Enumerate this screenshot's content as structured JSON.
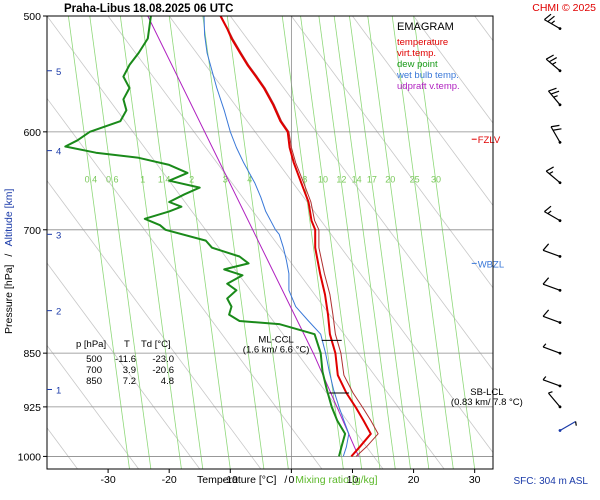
{
  "header": {
    "station": "Praha-Libus",
    "datetime": "18.08.2025 06 UTC",
    "credit": "CHMI © 2025"
  },
  "footer": {
    "sfc": "SFC: 304 m ASL"
  },
  "chart_data": {
    "type": "line",
    "title": "EMAGRAM",
    "xlabel_temperature": "Temperature [°C]",
    "xlabel_separator": "/",
    "xlabel_mixing": "Mixing ratio [g/kg]",
    "ylabel_pressure": "Pressure [hPa]",
    "ylabel_separator": "/",
    "ylabel_altitude": "Altitude [km]",
    "xlim": [
      -40,
      33
    ],
    "ylim": [
      1020,
      500
    ],
    "y_scale": "log",
    "grid": true,
    "legend_position": "top-right",
    "x_ticks": [
      -30,
      -20,
      -10,
      0,
      10,
      20,
      30
    ],
    "pressure_ticks": [
      500,
      600,
      700,
      850,
      925,
      1000
    ],
    "pressure_tick_labels": [
      "500",
      "600",
      "700",
      "850",
      "925",
      "1000"
    ],
    "altitude_ticks": [
      {
        "label": "1",
        "p": 900
      },
      {
        "label": "2",
        "p": 795
      },
      {
        "label": "3",
        "p": 705
      },
      {
        "label": "4",
        "p": 618
      },
      {
        "label": "5",
        "p": 545
      }
    ],
    "mixing_ratio_lines": [
      {
        "label": "0.4",
        "t": -31.5
      },
      {
        "label": "0.6",
        "t": -28.0
      },
      {
        "label": "1",
        "t": -23.0
      },
      {
        "label": "1.4",
        "t": -19.5
      },
      {
        "label": "2",
        "t": -15.0
      },
      {
        "label": "3",
        "t": -9.5
      },
      {
        "label": "4",
        "t": -5.5
      },
      {
        "label": "8",
        "t": 3.5
      },
      {
        "label": "10",
        "t": 6.5
      },
      {
        "label": "12",
        "t": 9.5
      },
      {
        "label": "14",
        "t": 12.0
      },
      {
        "label": "17",
        "t": 14.5
      },
      {
        "label": "20",
        "t": 17.5
      },
      {
        "label": "25",
        "t": 21.5
      },
      {
        "label": "30",
        "t": 25.0
      }
    ],
    "mixing_label_pressure": 650,
    "dry_adiabat_slope": 25,
    "dry_adiabat_offsets": [
      -80,
      -70,
      -60,
      -50,
      -40,
      -30,
      -20,
      -10,
      0,
      10,
      20,
      30,
      40,
      50,
      60,
      70
    ],
    "legend": [
      {
        "label": "temperature",
        "color": "#e00000"
      },
      {
        "label": "virt.temp.",
        "color": "#e00000"
      },
      {
        "label": "dew point",
        "color": "#1a9a1a"
      },
      {
        "label": "wet bulb temp.",
        "color": "#3a78d8"
      },
      {
        "label": "udpraft v.temp.",
        "color": "#b020c0"
      }
    ],
    "series": [
      {
        "name": "temperature",
        "color": "#e00000",
        "width": 2.0,
        "points": [
          [
            9.8,
            1000
          ],
          [
            11.2,
            985
          ],
          [
            13.0,
            965
          ],
          [
            11.8,
            945
          ],
          [
            10.5,
            925
          ],
          [
            9.0,
            905
          ],
          [
            7.6,
            880
          ],
          [
            7.2,
            850
          ],
          [
            6.3,
            825
          ],
          [
            6.0,
            800
          ],
          [
            5.5,
            775
          ],
          [
            4.7,
            750
          ],
          [
            3.9,
            720
          ],
          [
            3.9,
            700
          ],
          [
            3.3,
            690
          ],
          [
            2.8,
            670
          ],
          [
            1.6,
            650
          ],
          [
            0.4,
            630
          ],
          [
            -0.3,
            615
          ],
          [
            -0.6,
            600
          ],
          [
            -1.8,
            590
          ],
          [
            -3.0,
            575
          ],
          [
            -4.5,
            560
          ],
          [
            -5.8,
            550
          ],
          [
            -7.2,
            540
          ],
          [
            -8.4,
            530
          ],
          [
            -9.8,
            518
          ],
          [
            -10.5,
            510
          ],
          [
            -11.6,
            500
          ]
        ]
      },
      {
        "name": "virt.temp.",
        "color": "#b03030",
        "width": 1.0,
        "points": [
          [
            10.6,
            1000
          ],
          [
            12.3,
            985
          ],
          [
            14.2,
            965
          ],
          [
            13.0,
            945
          ],
          [
            11.6,
            925
          ],
          [
            10.1,
            905
          ],
          [
            8.6,
            880
          ],
          [
            8.1,
            850
          ],
          [
            7.2,
            825
          ],
          [
            6.8,
            800
          ],
          [
            6.3,
            775
          ],
          [
            5.4,
            750
          ],
          [
            4.5,
            720
          ],
          [
            4.5,
            700
          ],
          [
            3.8,
            690
          ],
          [
            3.2,
            670
          ],
          [
            2.0,
            650
          ],
          [
            0.7,
            630
          ],
          [
            0.0,
            615
          ],
          [
            -0.4,
            600
          ],
          [
            -1.6,
            590
          ],
          [
            -2.8,
            575
          ],
          [
            -4.3,
            560
          ],
          [
            -5.6,
            550
          ],
          [
            -7.0,
            540
          ],
          [
            -8.2,
            530
          ],
          [
            -9.6,
            518
          ],
          [
            -10.4,
            510
          ],
          [
            -11.5,
            500
          ]
        ]
      },
      {
        "name": "dew point",
        "color": "#1a8a1a",
        "width": 2.0,
        "points": [
          [
            7.8,
            1000
          ],
          [
            8.2,
            985
          ],
          [
            8.8,
            965
          ],
          [
            7.5,
            945
          ],
          [
            6.6,
            925
          ],
          [
            5.8,
            900
          ],
          [
            5.1,
            875
          ],
          [
            4.8,
            850
          ],
          [
            3.8,
            825
          ],
          [
            -2.0,
            812
          ],
          [
            -8.5,
            808
          ],
          [
            -10.2,
            800
          ],
          [
            -9.8,
            790
          ],
          [
            -10.5,
            780
          ],
          [
            -9.0,
            770
          ],
          [
            -10.5,
            762
          ],
          [
            -8.0,
            752
          ],
          [
            -11.0,
            745
          ],
          [
            -7.0,
            738
          ],
          [
            -8.5,
            730
          ],
          [
            -13.0,
            720
          ],
          [
            -14.0,
            712
          ],
          [
            -20.6,
            700
          ],
          [
            -21.5,
            695
          ],
          [
            -24.0,
            688
          ],
          [
            -20.0,
            680
          ],
          [
            -18.0,
            675
          ],
          [
            -20.0,
            670
          ],
          [
            -17.5,
            662
          ],
          [
            -15.0,
            655
          ],
          [
            -20.0,
            648
          ],
          [
            -17.0,
            640
          ],
          [
            -20.0,
            632
          ],
          [
            -25.0,
            625
          ],
          [
            -32.0,
            620
          ],
          [
            -37.0,
            614
          ],
          [
            -35.0,
            608
          ],
          [
            -33.0,
            600
          ],
          [
            -28.0,
            590
          ],
          [
            -27.0,
            580
          ],
          [
            -27.5,
            570
          ],
          [
            -26.5,
            560
          ],
          [
            -27.5,
            550
          ],
          [
            -26.5,
            540
          ],
          [
            -25.0,
            530
          ],
          [
            -23.5,
            518
          ],
          [
            -23.0,
            500
          ]
        ]
      },
      {
        "name": "wet bulb temp.",
        "color": "#3a78d8",
        "width": 1.0,
        "points": [
          [
            8.5,
            1000
          ],
          [
            9.0,
            985
          ],
          [
            9.4,
            965
          ],
          [
            8.6,
            945
          ],
          [
            7.8,
            925
          ],
          [
            6.9,
            900
          ],
          [
            6.2,
            875
          ],
          [
            5.6,
            850
          ],
          [
            4.8,
            825
          ],
          [
            2.8,
            808
          ],
          [
            0.7,
            790
          ],
          [
            -0.4,
            770
          ],
          [
            -0.4,
            750
          ],
          [
            -0.8,
            735
          ],
          [
            -1.3,
            720
          ],
          [
            -2.0,
            705
          ],
          [
            -2.6,
            700
          ],
          [
            -4.2,
            680
          ],
          [
            -5.0,
            665
          ],
          [
            -6.0,
            650
          ],
          [
            -7.8,
            630
          ],
          [
            -9.0,
            615
          ],
          [
            -10.0,
            600
          ],
          [
            -11.0,
            580
          ],
          [
            -12.2,
            560
          ],
          [
            -13.0,
            545
          ],
          [
            -13.8,
            530
          ],
          [
            -14.2,
            515
          ],
          [
            -14.3,
            500
          ]
        ]
      },
      {
        "name": "udpraft v.temp.",
        "color": "#b020c0",
        "width": 1.0,
        "points": [
          [
            11.0,
            1000
          ],
          [
            3.7,
            852
          ],
          [
            -23.5,
            500
          ]
        ]
      }
    ],
    "annotations": [
      {
        "kind": "level",
        "label": "FZLV",
        "p": 607,
        "color": "#e00000",
        "label_t": 30.5
      },
      {
        "kind": "level",
        "label": "WBZL",
        "p": 738,
        "color": "#3a78d8",
        "label_t": 30.5
      },
      {
        "kind": "ccl",
        "label": "ML-CCL",
        "sub": "(1.6 km/ 6.6 °C)",
        "t": 6.6,
        "p": 833,
        "label_t": -2.5
      },
      {
        "kind": "ccl",
        "label": "SB-LCL",
        "sub": "(0.83 km/ 7.8 °C)",
        "t": 7.8,
        "p": 905,
        "label_t": 32.0
      }
    ],
    "table": {
      "headers": [
        "p [hPa]",
        "T",
        "Td [°C]"
      ],
      "rows": [
        [
          "500",
          "-11.6",
          "-23.0"
        ],
        [
          "700",
          "3.9",
          "-20.6"
        ],
        [
          "850",
          "7.2",
          "4.8"
        ]
      ]
    },
    "wind_barbs": [
      {
        "p": 510,
        "dir": 300,
        "speed": 25
      },
      {
        "p": 545,
        "dir": 310,
        "speed": 25
      },
      {
        "p": 575,
        "dir": 320,
        "speed": 25
      },
      {
        "p": 610,
        "dir": 330,
        "speed": 20
      },
      {
        "p": 650,
        "dir": 310,
        "speed": 15
      },
      {
        "p": 690,
        "dir": 300,
        "speed": 15
      },
      {
        "p": 730,
        "dir": 290,
        "speed": 10
      },
      {
        "p": 770,
        "dir": 290,
        "speed": 10
      },
      {
        "p": 810,
        "dir": 290,
        "speed": 10
      },
      {
        "p": 850,
        "dir": 290,
        "speed": 5
      },
      {
        "p": 895,
        "dir": 290,
        "speed": 5
      },
      {
        "p": 925,
        "dir": 320,
        "speed": 5
      },
      {
        "p": 960,
        "dir": 60,
        "speed": 5
      }
    ],
    "colors": {
      "frame": "#000000",
      "grid": "#8a8a8a",
      "adiabat": "#c8c8c8",
      "mixing": "#8fd87a",
      "mixing_label": "#7ac85a",
      "altitude": "#1a3aa8",
      "x_label_mixing": "#5cb82a",
      "sfc": "#1a3aa8",
      "credit": "#e00000",
      "ccl_marker": "#000000"
    }
  }
}
